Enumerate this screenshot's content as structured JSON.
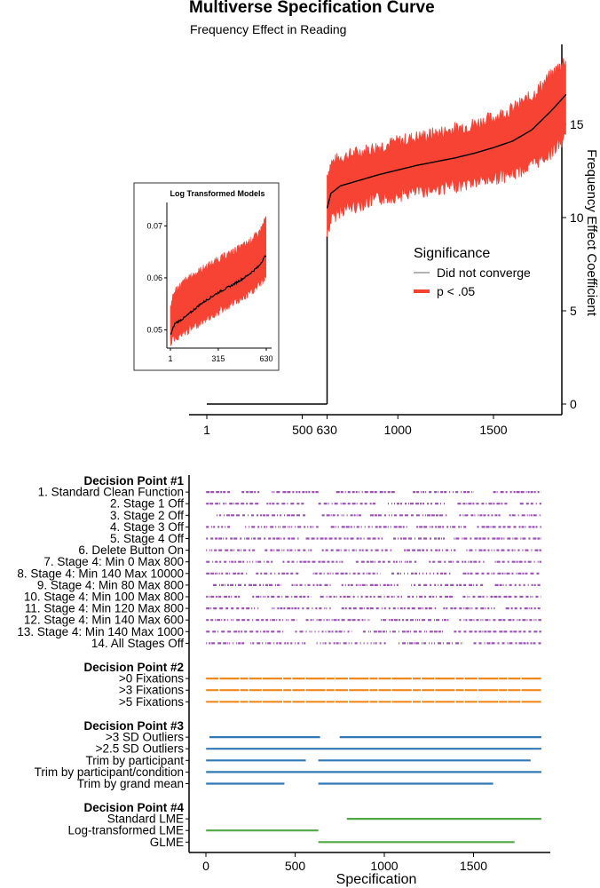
{
  "title": "Multiverse Specification Curve",
  "subtitle": "Frequency Effect in Reading",
  "colors": {
    "ci_band": "#f64334",
    "estimate_line": "#000000",
    "not_converged": "#9a9a9a",
    "dp1": "#9b51b5",
    "dp2": "#f08a1e",
    "dp3": "#3278b7",
    "dp4": "#52a846"
  },
  "chart_data": [
    {
      "type": "line",
      "name": "main-curve",
      "ylabel": "Frequency Effect Coefficient",
      "xlim": [
        1,
        1890
      ],
      "ylim": [
        -0.4,
        18.5
      ],
      "xticks": [
        1,
        500,
        630,
        1000,
        1500
      ],
      "yticks": [
        0,
        5,
        10,
        15
      ],
      "legend": {
        "title": "Significance",
        "position": "right",
        "items": [
          "Did not converge",
          "p < .05"
        ]
      },
      "segments": [
        {
          "label": "Did not converge",
          "x": [
            1,
            630
          ],
          "y": [
            0,
            0
          ]
        },
        {
          "label": "p < .05",
          "x": [
            630,
            650,
            700,
            800,
            900,
            1000,
            1100,
            1200,
            1300,
            1400,
            1500,
            1600,
            1700,
            1800,
            1880
          ],
          "y": [
            10.5,
            11.3,
            11.7,
            12.0,
            12.3,
            12.55,
            12.8,
            13.0,
            13.2,
            13.45,
            13.75,
            14.1,
            14.7,
            15.7,
            16.6
          ],
          "lower": [
            9.0,
            9.9,
            10.4,
            10.7,
            11.0,
            11.2,
            11.4,
            11.55,
            11.7,
            11.9,
            12.1,
            12.35,
            12.8,
            13.5,
            14.3
          ],
          "upper": [
            12.3,
            12.9,
            13.2,
            13.5,
            13.8,
            14.05,
            14.3,
            14.5,
            14.75,
            15.0,
            15.35,
            15.8,
            16.5,
            17.6,
            18.5
          ]
        }
      ]
    },
    {
      "type": "line",
      "name": "inset-log-models",
      "title": "Log Transformed Models",
      "xlim": [
        1,
        630
      ],
      "ylim": [
        0.0465,
        0.0745
      ],
      "xticks": [
        1,
        315,
        630
      ],
      "yticks": [
        0.05,
        0.06,
        0.07
      ],
      "x": [
        1,
        30,
        100,
        200,
        315,
        400,
        500,
        580,
        630
      ],
      "y": [
        0.049,
        0.0512,
        0.0525,
        0.055,
        0.0572,
        0.0585,
        0.0603,
        0.0622,
        0.0645
      ],
      "lower": [
        0.0475,
        0.0485,
        0.0495,
        0.0515,
        0.0535,
        0.055,
        0.0565,
        0.0585,
        0.0602
      ],
      "upper": [
        0.0545,
        0.0575,
        0.0595,
        0.0615,
        0.0635,
        0.0648,
        0.0665,
        0.0685,
        0.0715
      ]
    },
    {
      "type": "scatter",
      "name": "specification-matrix",
      "xlabel": "Specification",
      "xlim": [
        -95,
        1895
      ],
      "xticks": [
        0,
        500,
        1000,
        1500
      ],
      "groups": [
        {
          "title": "Decision Point #1",
          "color_key": "dp1",
          "rows": [
            {
              "label": "1. Standard Clean Function",
              "intervals": [
                [
                  1,
                  135
                ],
                [
                  200,
                  300
                ],
                [
                  370,
                  630
                ],
                [
                  730,
                  1060
                ],
                [
                  1160,
                  1500
                ],
                [
                  1610,
                  1880
                ]
              ],
              "pattern": "dotted"
            },
            {
              "label": "2. Stage 1 Off",
              "intervals": [
                [
                  1,
                  300
                ],
                [
                  340,
                  560
                ],
                [
                  630,
                  950
                ],
                [
                  1020,
                  1340
                ],
                [
                  1410,
                  1700
                ],
                [
                  1760,
                  1880
                ]
              ],
              "pattern": "dotted"
            },
            {
              "label": "3. Stage 2 Off",
              "intervals": [
                [
                  60,
                  560
                ],
                [
                  650,
                  870
                ],
                [
                  920,
                  1350
                ],
                [
                  1420,
                  1650
                ],
                [
                  1700,
                  1880
                ]
              ],
              "pattern": "dotted"
            },
            {
              "label": "4. Stage 3 Off",
              "intervals": [
                [
                  1,
                  135
                ],
                [
                  220,
                  630
                ],
                [
                  700,
                  1130
                ],
                [
                  1180,
                  1460
                ],
                [
                  1520,
                  1880
                ]
              ],
              "pattern": "dotted"
            },
            {
              "label": "5. Stage 4 Off",
              "intervals": [
                [
                  1,
                  520
                ],
                [
                  560,
                  990
                ],
                [
                  1050,
                  1340
                ],
                [
                  1390,
                  1880
                ]
              ],
              "pattern": "dotted"
            },
            {
              "label": "6. Delete Button On",
              "intervals": [
                [
                  1,
                  280
                ],
                [
                  330,
                  600
                ],
                [
                  650,
                  1040
                ],
                [
                  1110,
                  1400
                ],
                [
                  1460,
                  1880
                ]
              ],
              "pattern": "dotted"
            },
            {
              "label": "7. Stage 4: Min 0 Max 800",
              "intervals": [
                [
                  1,
                  380
                ],
                [
                  430,
                  770
                ],
                [
                  840,
                  1180
                ],
                [
                  1250,
                  1560
                ],
                [
                  1620,
                  1880
                ]
              ],
              "pattern": "dotted"
            },
            {
              "label": "8. Stage 4: Min 140 Max 10000",
              "intervals": [
                [
                  1,
                  230
                ],
                [
                  280,
                  520
                ],
                [
                  600,
                  980
                ],
                [
                  1040,
                  1370
                ],
                [
                  1440,
                  1880
                ]
              ],
              "pattern": "dotted"
            },
            {
              "label": "9. Stage 4: Min 80 Max 800",
              "intervals": [
                [
                  40,
                  420
                ],
                [
                  480,
                  700
                ],
                [
                  760,
                  1080
                ],
                [
                  1150,
                  1560
                ],
                [
                  1620,
                  1880
                ]
              ],
              "pattern": "dotted"
            },
            {
              "label": "10. Stage 4: Min 100 Max 800",
              "intervals": [
                [
                  1,
                  200
                ],
                [
                  260,
                  590
                ],
                [
                  640,
                  1100
                ],
                [
                  1130,
                  1390
                ],
                [
                  1440,
                  1880
                ]
              ],
              "pattern": "dotted"
            },
            {
              "label": "11. Stage 4: Min 120 Max 800",
              "intervals": [
                [
                  1,
                  300
                ],
                [
                  370,
                  700
                ],
                [
                  760,
                  1290
                ],
                [
                  1330,
                  1620
                ],
                [
                  1680,
                  1880
                ]
              ],
              "pattern": "dotted"
            },
            {
              "label": "12. Stage 4: Min 140 Max 600",
              "intervals": [
                [
                  1,
                  510
                ],
                [
                  560,
                  920
                ],
                [
                  980,
                  1360
                ],
                [
                  1420,
                  1880
                ]
              ],
              "pattern": "dotted"
            },
            {
              "label": "13. Stage 4: Min 140 Max 1000",
              "intervals": [
                [
                  1,
                  440
                ],
                [
                  500,
                  820
                ],
                [
                  880,
                  1340
                ],
                [
                  1390,
                  1880
                ]
              ],
              "pattern": "dotted"
            },
            {
              "label": "14. All Stages Off",
              "intervals": [
                [
                  1,
                  220
                ],
                [
                  250,
                  560
                ],
                [
                  620,
                  1010
                ],
                [
                  1080,
                  1440
                ],
                [
                  1500,
                  1880
                ]
              ],
              "pattern": "dotted"
            }
          ]
        },
        {
          "title": "Decision Point #2",
          "color_key": "dp2",
          "rows": [
            {
              "label": ">0 Fixations",
              "intervals": [
                [
                  1,
                  1880
                ]
              ],
              "pattern": "dashed"
            },
            {
              "label": ">3 Fixations",
              "intervals": [
                [
                  1,
                  1880
                ]
              ],
              "pattern": "dashed"
            },
            {
              "label": ">5 Fixations",
              "intervals": [
                [
                  1,
                  1880
                ]
              ],
              "pattern": "dashed"
            }
          ]
        },
        {
          "title": "Decision Point #3",
          "color_key": "dp3",
          "rows": [
            {
              "label": ">3 SD Outliers",
              "intervals": [
                [
                  20,
                  640
                ],
                [
                  750,
                  1880
                ]
              ],
              "pattern": "solid"
            },
            {
              "label": ">2.5 SD Outliers",
              "intervals": [
                [
                  1,
                  1880
                ]
              ],
              "pattern": "solid"
            },
            {
              "label": "Trim by participant",
              "intervals": [
                [
                  1,
                  560
                ],
                [
                  630,
                  1820
                ]
              ],
              "pattern": "solid"
            },
            {
              "label": "Trim by participant/condition",
              "intervals": [
                [
                  1,
                  1880
                ]
              ],
              "pattern": "solid"
            },
            {
              "label": "Trim by grand mean",
              "intervals": [
                [
                  1,
                  440
                ],
                [
                  630,
                  1610
                ]
              ],
              "pattern": "solid"
            }
          ]
        },
        {
          "title": "Decision Point #4",
          "color_key": "dp4",
          "rows": [
            {
              "label": "Standard LME",
              "intervals": [
                [
                  790,
                  1880
                ]
              ],
              "pattern": "solid"
            },
            {
              "label": "Log-transformed LME",
              "intervals": [
                [
                  1,
                  630
                ]
              ],
              "pattern": "solid"
            },
            {
              "label": "GLME",
              "intervals": [
                [
                  630,
                  1730
                ]
              ],
              "pattern": "solid"
            }
          ]
        }
      ]
    }
  ]
}
